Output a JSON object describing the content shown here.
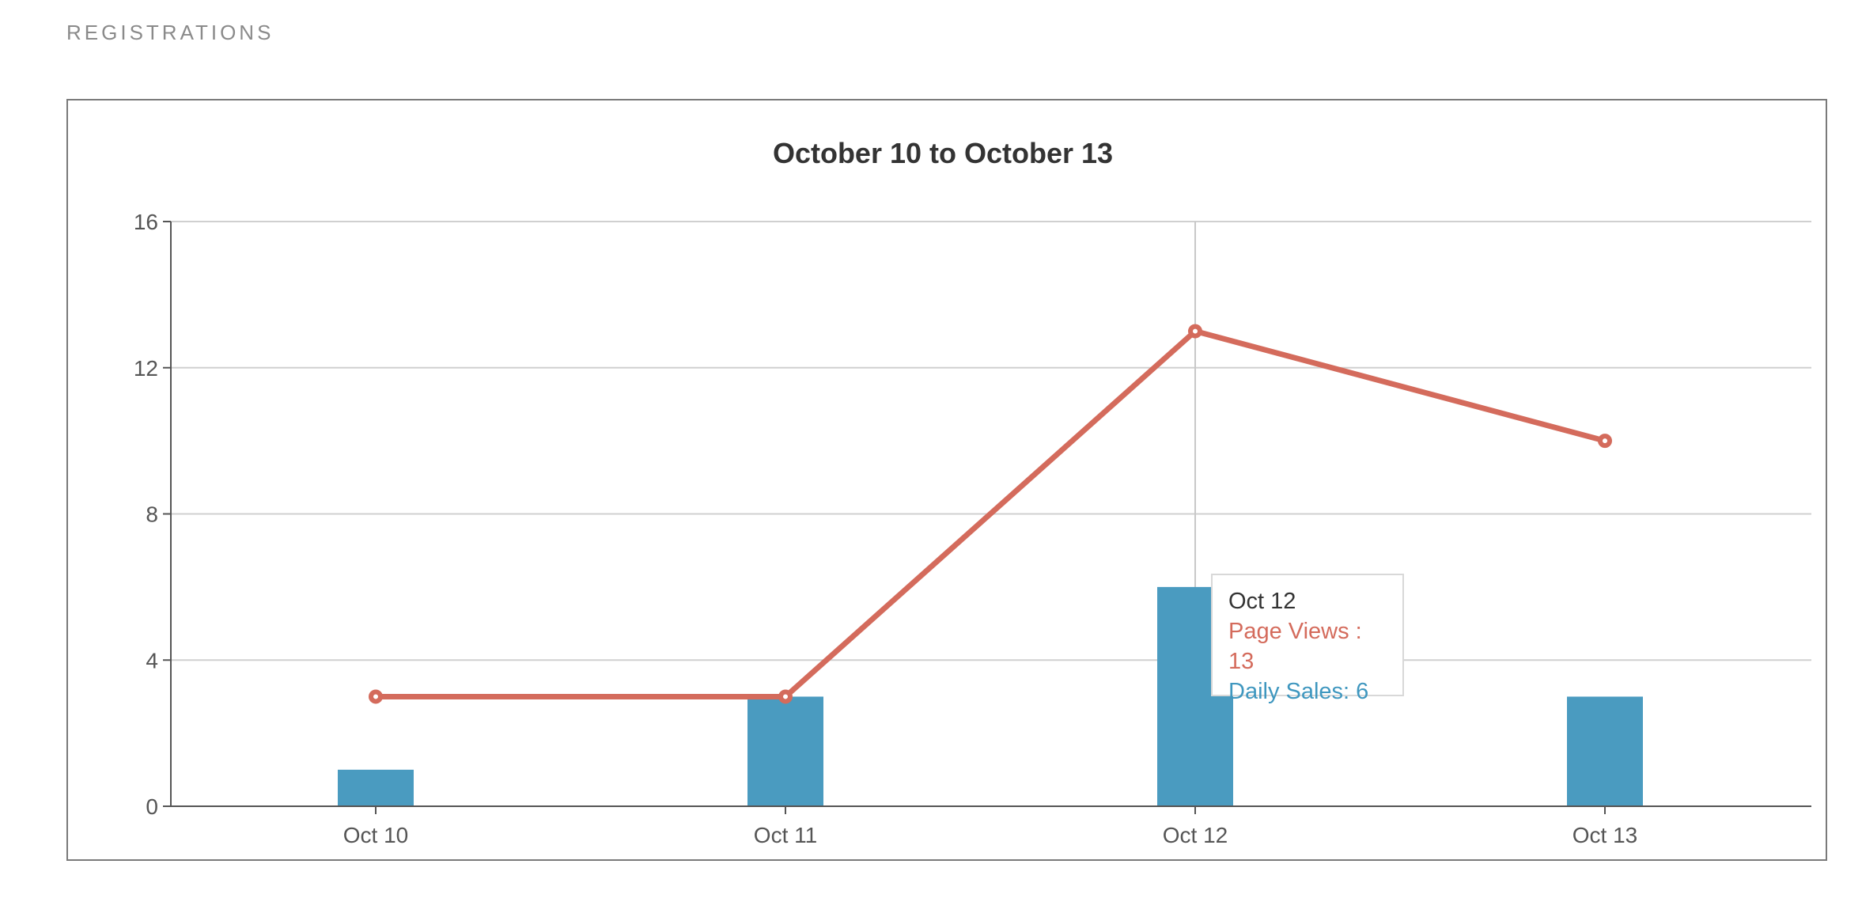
{
  "section_label": "REGISTRATIONS",
  "chart_data": {
    "type": "bar+line",
    "title": "October 10 to October 13",
    "categories": [
      "Oct 10",
      "Oct 11",
      "Oct 12",
      "Oct 13"
    ],
    "ylim": [
      0,
      16
    ],
    "yticks": [
      "0",
      "4",
      "8",
      "12",
      "16"
    ],
    "ytick_values": [
      0,
      4,
      8,
      12,
      16
    ],
    "grid": true,
    "series": [
      {
        "name": "Daily Sales",
        "type": "bar",
        "values": [
          1,
          3,
          6,
          3
        ],
        "color": "#4a9bc0"
      },
      {
        "name": "Page Views",
        "type": "line",
        "values": [
          3,
          3,
          13,
          10
        ],
        "color": "#d46b5c"
      }
    ],
    "tooltip": {
      "category": "Oct 12",
      "line_text": "Page Views : 13",
      "bar_text": "Daily Sales: 6"
    }
  }
}
